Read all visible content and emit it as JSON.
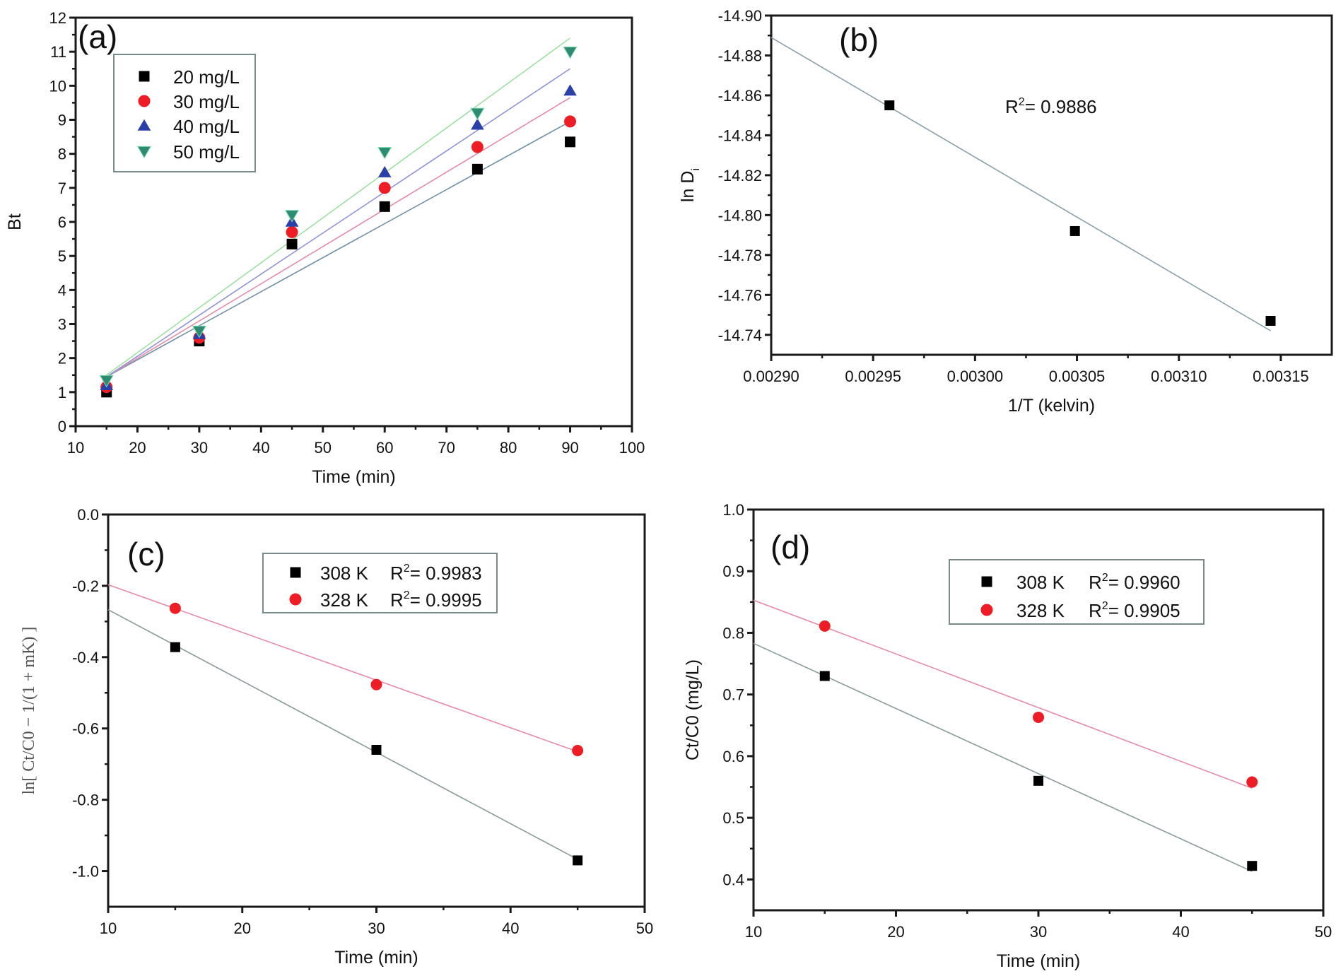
{
  "chart_data": [
    {
      "id": "a",
      "type": "scatter",
      "panel_label": "(a)",
      "xlabel": "Time (min)",
      "ylabel": "Bt",
      "xlim": [
        10,
        100
      ],
      "ylim": [
        0,
        12
      ],
      "xticks": [
        10,
        20,
        30,
        40,
        50,
        60,
        70,
        80,
        90,
        100
      ],
      "yticks": [
        0,
        1,
        2,
        3,
        4,
        5,
        6,
        7,
        8,
        9,
        10,
        11,
        12
      ],
      "grid": false,
      "legend_position": "top-left",
      "series": [
        {
          "name": "20 mg/L",
          "marker": "square",
          "color": "#000000",
          "fit_color": "#6f8fa6",
          "x": [
            15,
            30,
            45,
            60,
            75,
            90
          ],
          "y": [
            1.0,
            2.5,
            5.35,
            6.45,
            7.55,
            8.35
          ],
          "fit": {
            "x": [
              15,
              90
            ],
            "y": [
              1.45,
              8.95
            ]
          }
        },
        {
          "name": "30 mg/L",
          "marker": "circle",
          "color": "#ee1c25",
          "fit_color": "#e58aa8",
          "x": [
            15,
            30,
            45,
            60,
            75,
            90
          ],
          "y": [
            1.15,
            2.6,
            5.7,
            7.0,
            8.2,
            8.95
          ],
          "fit": {
            "x": [
              15,
              90
            ],
            "y": [
              1.45,
              9.65
            ]
          }
        },
        {
          "name": "40 mg/L",
          "marker": "triangle-up",
          "color": "#2b3fa8",
          "fit_color": "#8f93d8",
          "x": [
            15,
            30,
            45,
            60,
            75,
            90
          ],
          "y": [
            1.2,
            2.7,
            6.0,
            7.45,
            8.85,
            9.85
          ],
          "fit": {
            "x": [
              15,
              90
            ],
            "y": [
              1.45,
              10.5
            ]
          }
        },
        {
          "name": "50 mg/L",
          "marker": "triangle-down",
          "color": "#2e8b72",
          "fit_color": "#9ee0a0",
          "x": [
            15,
            30,
            45,
            60,
            75,
            90
          ],
          "y": [
            1.35,
            2.8,
            6.2,
            8.05,
            9.2,
            11.0
          ],
          "fit": {
            "x": [
              15,
              90
            ],
            "y": [
              1.5,
              11.4
            ]
          }
        }
      ]
    },
    {
      "id": "b",
      "type": "scatter",
      "panel_label": "(b)",
      "xlabel": "1/T (kelvin)",
      "ylabel": "ln D",
      "ylabel_sub": "i",
      "xlim": [
        0.0029,
        0.003175
      ],
      "ylim": [
        -14.73,
        -14.9
      ],
      "y_inverted": true,
      "xticks": [
        "0.00290",
        "0.00295",
        "0.00300",
        "0.00305",
        "0.00310",
        "0.00315"
      ],
      "yticks": [
        "-14.90",
        "-14.88",
        "-14.86",
        "-14.84",
        "-14.82",
        "-14.80",
        "-14.78",
        "-14.76",
        "-14.74"
      ],
      "grid": false,
      "annotation": {
        "text": "R",
        "sup": "2",
        "rest": "= 0.9886"
      },
      "series": [
        {
          "name": "ln Di",
          "marker": "square",
          "color": "#000000",
          "fit_color": "#8aa0a8",
          "x": [
            0.002958,
            0.003049,
            0.003145
          ],
          "y": [
            -14.855,
            -14.792,
            -14.747
          ],
          "fit": {
            "x": [
              0.0029,
              0.003145
            ],
            "y": [
              -14.889,
              -14.742
            ]
          }
        }
      ]
    },
    {
      "id": "c",
      "type": "scatter",
      "panel_label": "(c)",
      "xlabel": "Time (min)",
      "ylabel": "ln[Ct/C0 − 1/(1+mK)]",
      "xlim": [
        10,
        50
      ],
      "ylim": [
        -1.1,
        0.0
      ],
      "xticks": [
        10,
        20,
        30,
        40,
        50
      ],
      "yticks": [
        "0.0",
        "-0.2",
        "-0.4",
        "-0.6",
        "-0.8",
        "-1.0"
      ],
      "grid": false,
      "legend_position": "top-center",
      "series": [
        {
          "name": "308 K",
          "r2": "0.9983",
          "marker": "square",
          "color": "#000000",
          "fit_color": "#8a9a9a",
          "x": [
            15,
            30,
            45
          ],
          "y": [
            -0.372,
            -0.66,
            -0.97
          ],
          "fit": {
            "x": [
              10,
              45
            ],
            "y": [
              -0.267,
              -0.967
            ]
          }
        },
        {
          "name": "328 K",
          "r2": "0.9995",
          "marker": "circle",
          "color": "#ee1c25",
          "fit_color": "#e58aa8",
          "x": [
            15,
            30,
            45
          ],
          "y": [
            -0.263,
            -0.477,
            -0.662
          ],
          "fit": {
            "x": [
              10,
              45
            ],
            "y": [
              -0.197,
              -0.665
            ]
          }
        }
      ]
    },
    {
      "id": "d",
      "type": "scatter",
      "panel_label": "(d)",
      "xlabel": "Time (min)",
      "ylabel": "Ct/C0 (mg/L)",
      "xlim": [
        10,
        50
      ],
      "ylim": [
        0.35,
        1.0
      ],
      "xticks": [
        10,
        20,
        30,
        40,
        50
      ],
      "yticks": [
        "0.4",
        "0.5",
        "0.6",
        "0.7",
        "0.8",
        "0.9",
        "1.0"
      ],
      "grid": false,
      "legend_position": "top-center",
      "series": [
        {
          "name": "308 K",
          "r2": "0.9960",
          "marker": "square",
          "color": "#000000",
          "fit_color": "#8a9a9a",
          "x": [
            15,
            30,
            45
          ],
          "y": [
            0.73,
            0.56,
            0.422
          ],
          "fit": {
            "x": [
              10,
              45
            ],
            "y": [
              0.783,
              0.413
            ]
          }
        },
        {
          "name": "328 K",
          "r2": "0.9905",
          "marker": "circle",
          "color": "#ee1c25",
          "fit_color": "#e58aa8",
          "x": [
            15,
            30,
            45
          ],
          "y": [
            0.811,
            0.663,
            0.558
          ],
          "fit": {
            "x": [
              10,
              45
            ],
            "y": [
              0.853,
              0.548
            ]
          }
        }
      ]
    }
  ]
}
